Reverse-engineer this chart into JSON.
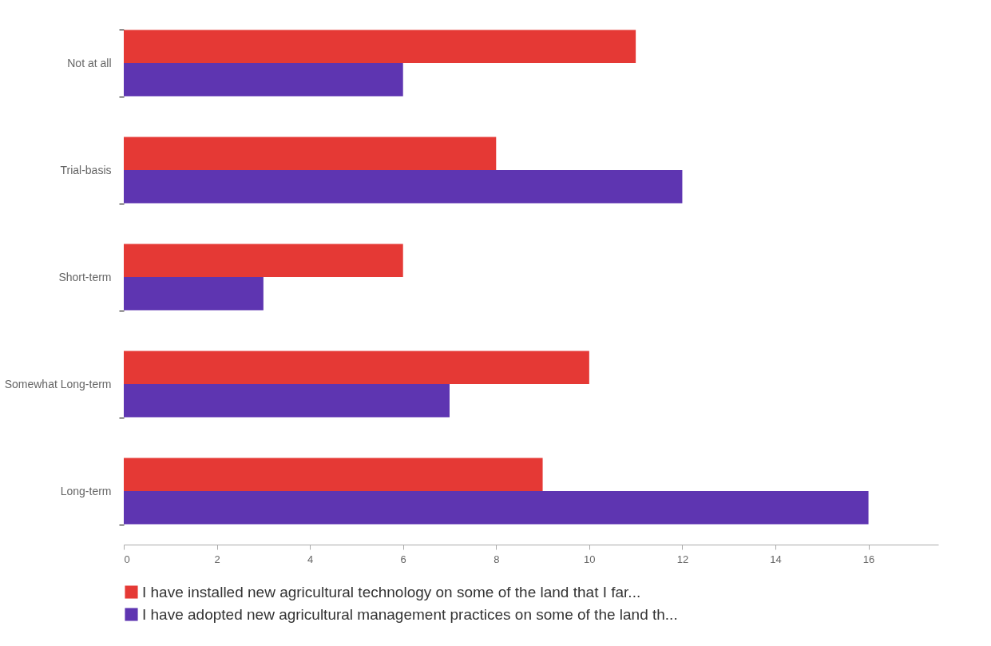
{
  "chart_data": {
    "type": "bar",
    "orientation": "horizontal",
    "categories": [
      "Not at all",
      "Trial-basis",
      "Short-term",
      "Somewhat Long-term",
      "Long-term"
    ],
    "series": [
      {
        "name": "I have installed new agricultural technology on some of the land that I far...",
        "color": "#e53935",
        "values": [
          11,
          8,
          6,
          10,
          9
        ]
      },
      {
        "name": "I have adopted new agricultural management practices on some of the land th...",
        "color": "#5e35b1",
        "values": [
          6,
          12,
          3,
          7,
          16
        ]
      }
    ],
    "xlim": [
      0,
      17.5
    ],
    "xticks": [
      0,
      2,
      4,
      6,
      8,
      10,
      12,
      14,
      16
    ],
    "legend": "bottom"
  }
}
